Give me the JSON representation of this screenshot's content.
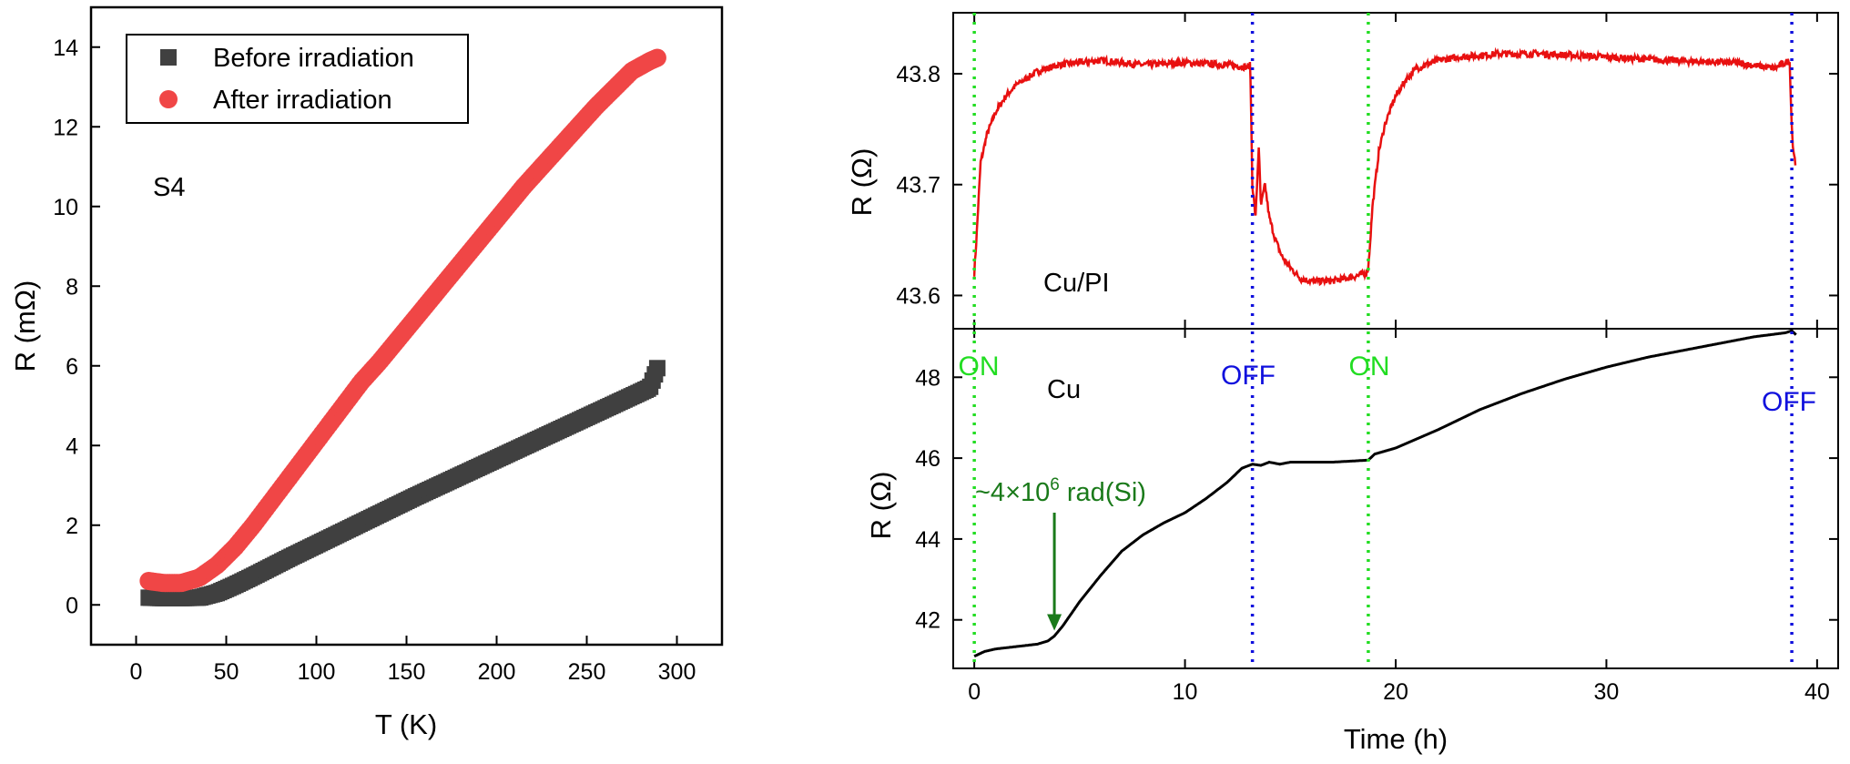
{
  "colors": {
    "before": "#404040",
    "after": "#f04646",
    "cupi_line": "#e81010",
    "cu_line": "#000000",
    "on_marker": "#22dd22",
    "off_marker": "#1010dd",
    "annotation": "#1a7a1a"
  },
  "chart_data": [
    {
      "type": "scatter",
      "panel": "left",
      "xlabel": "T (K)",
      "ylabel": "R (mΩ)",
      "xlim": [
        -25,
        325
      ],
      "ylim": [
        -1,
        15
      ],
      "xticks": [
        0,
        50,
        100,
        150,
        200,
        250,
        300
      ],
      "yticks": [
        0,
        2,
        4,
        6,
        8,
        10,
        12,
        14
      ],
      "sample_label": "S4",
      "legend_position": "top-left",
      "series": [
        {
          "name": "Before irradiation",
          "marker": "square",
          "x": [
            7,
            15,
            25,
            35,
            45,
            55,
            65,
            75,
            85,
            95,
            105,
            115,
            125,
            135,
            145,
            155,
            165,
            175,
            185,
            195,
            205,
            215,
            225,
            235,
            245,
            255,
            265,
            275,
            285,
            290
          ],
          "values": [
            0.18,
            0.17,
            0.17,
            0.18,
            0.3,
            0.5,
            0.72,
            0.95,
            1.18,
            1.4,
            1.62,
            1.84,
            2.06,
            2.28,
            2.5,
            2.72,
            2.93,
            3.14,
            3.35,
            3.56,
            3.77,
            3.98,
            4.19,
            4.4,
            4.61,
            4.82,
            5.03,
            5.24,
            5.45,
            6.05
          ]
        },
        {
          "name": "After irradiation",
          "marker": "circle",
          "x": [
            7,
            15,
            25,
            35,
            45,
            55,
            65,
            75,
            85,
            95,
            105,
            115,
            125,
            135,
            145,
            155,
            165,
            175,
            185,
            195,
            205,
            215,
            225,
            235,
            245,
            255,
            265,
            275,
            285,
            290
          ],
          "values": [
            0.6,
            0.55,
            0.55,
            0.68,
            1.0,
            1.45,
            2.0,
            2.6,
            3.2,
            3.8,
            4.4,
            5.0,
            5.6,
            6.1,
            6.65,
            7.2,
            7.75,
            8.3,
            8.85,
            9.4,
            9.95,
            10.5,
            11.0,
            11.5,
            12.0,
            12.5,
            12.95,
            13.4,
            13.65,
            13.75
          ]
        }
      ]
    },
    {
      "type": "line",
      "panel": "right-top",
      "xlabel": "",
      "ylabel": "R (Ω)",
      "xlim": [
        -1,
        41
      ],
      "ylim": [
        43.57,
        43.855
      ],
      "yticks": [
        43.6,
        43.7,
        43.8
      ],
      "sample_label": "Cu/PI",
      "series": [
        {
          "name": "Cu/PI",
          "x": [
            0,
            0.1,
            0.3,
            0.6,
            1,
            1.5,
            2,
            3,
            4,
            5,
            6,
            8,
            10,
            12,
            13,
            13.1,
            13.2,
            13.35,
            13.5,
            13.6,
            13.8,
            14,
            14.3,
            14.6,
            15,
            15.5,
            16,
            17,
            18,
            18.6,
            18.7,
            18.9,
            19.2,
            19.5,
            20,
            20.5,
            21,
            22,
            23,
            25,
            27,
            30,
            33,
            36,
            38,
            38.7,
            38.75,
            38.85,
            39
          ],
          "values": [
            43.62,
            43.65,
            43.72,
            43.745,
            43.765,
            43.78,
            43.79,
            43.802,
            43.808,
            43.81,
            43.812,
            43.808,
            43.81,
            43.808,
            43.806,
            43.808,
            43.7,
            43.67,
            43.735,
            43.68,
            43.7,
            43.67,
            43.65,
            43.635,
            43.625,
            43.615,
            43.613,
            43.613,
            43.617,
            43.62,
            43.625,
            43.68,
            43.73,
            43.755,
            43.78,
            43.795,
            43.805,
            43.812,
            43.815,
            43.818,
            43.818,
            43.815,
            43.812,
            43.81,
            43.805,
            43.812,
            43.775,
            43.735,
            43.715
          ]
        }
      ]
    },
    {
      "type": "line",
      "panel": "right-bottom",
      "xlabel": "Time (h)",
      "ylabel": "R (Ω)",
      "xlim": [
        -1,
        41
      ],
      "ylim": [
        40.8,
        49.2
      ],
      "xticks": [
        0,
        10,
        20,
        30,
        40
      ],
      "yticks": [
        42,
        44,
        46,
        48
      ],
      "sample_label": "Cu",
      "annotation": {
        "text_prefix": "~4×10",
        "text_exponent": "6",
        "text_suffix": " rad(Si)",
        "arrow_x": 3.8,
        "arrow_y": 41.6
      },
      "markers": [
        {
          "x": 0,
          "label": "ON",
          "kind": "on"
        },
        {
          "x": 13.2,
          "label": "OFF",
          "kind": "off"
        },
        {
          "x": 18.7,
          "label": "ON",
          "kind": "on"
        },
        {
          "x": 38.8,
          "label": "OFF",
          "kind": "off"
        }
      ],
      "series": [
        {
          "name": "Cu",
          "x": [
            0,
            0.5,
            1,
            2,
            3,
            3.5,
            3.8,
            4.2,
            5,
            6,
            7,
            8,
            9,
            10,
            11,
            12,
            12.7,
            13.2,
            13.6,
            14,
            14.5,
            15,
            17,
            18.7,
            19,
            20,
            22,
            24,
            26,
            28,
            30,
            32,
            35,
            37,
            38.5,
            38.8,
            39
          ],
          "values": [
            41.1,
            41.22,
            41.28,
            41.34,
            41.4,
            41.48,
            41.6,
            41.85,
            42.45,
            43.1,
            43.7,
            44.1,
            44.4,
            44.65,
            45.0,
            45.4,
            45.75,
            45.85,
            45.82,
            45.9,
            45.85,
            45.9,
            45.9,
            45.95,
            46.1,
            46.25,
            46.7,
            47.2,
            47.6,
            47.95,
            48.25,
            48.5,
            48.8,
            49.0,
            49.1,
            49.15,
            49.05
          ]
        }
      ]
    }
  ]
}
